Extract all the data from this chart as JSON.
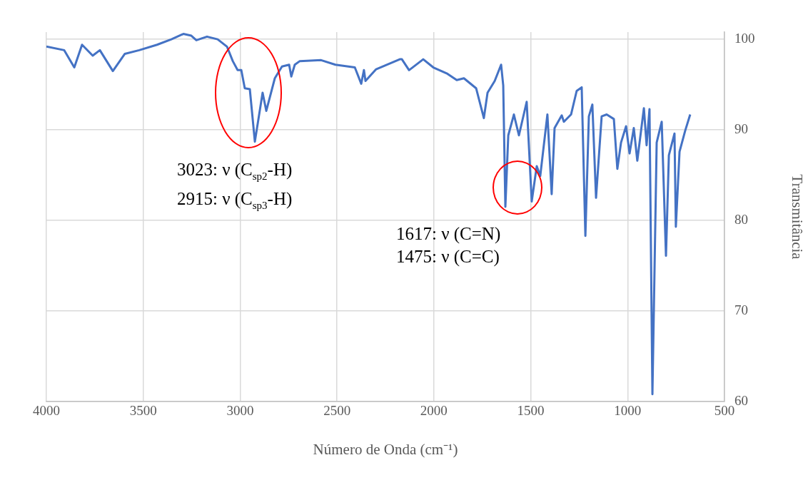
{
  "chart_data": {
    "type": "line",
    "xlabel": "Número de Onda (cm⁻¹)",
    "ylabel": "Transmitância",
    "color": "#4472c4",
    "grid": true,
    "xlim": [
      4000,
      500
    ],
    "xticks": [
      4000,
      3500,
      3000,
      2500,
      2000,
      1500,
      1000,
      500
    ],
    "ylim": [
      60,
      100.8
    ],
    "yticks": [
      60,
      70,
      80,
      90,
      100
    ],
    "x": [
      4000,
      3908,
      3856,
      3816,
      3761,
      3724,
      3657,
      3595,
      3521,
      3429,
      3355,
      3293,
      3252,
      3226,
      3171,
      3116,
      3068,
      3038,
      3013,
      2994,
      2976,
      2950,
      2924,
      2884,
      2865,
      2821,
      2784,
      2747,
      2736,
      2718,
      2692,
      2582,
      2508,
      2408,
      2375,
      2361,
      2353,
      2298,
      2176,
      2165,
      2128,
      2055,
      2003,
      1930,
      1882,
      1845,
      1782,
      1742,
      1723,
      1686,
      1653,
      1642,
      1631,
      1616,
      1587,
      1561,
      1521,
      1495,
      1469,
      1451,
      1414,
      1392,
      1377,
      1340,
      1329,
      1292,
      1263,
      1237,
      1218,
      1200,
      1182,
      1163,
      1134,
      1108,
      1071,
      1053,
      1034,
      1008,
      990,
      968,
      950,
      916,
      902,
      887,
      872,
      850,
      824,
      802,
      787,
      758,
      751,
      732,
      703,
      677
    ],
    "values": [
      99.2,
      98.8,
      96.9,
      99.4,
      98.2,
      98.8,
      96.5,
      98.4,
      98.8,
      99.4,
      100.0,
      100.6,
      100.4,
      99.9,
      100.3,
      100.0,
      99.2,
      97.6,
      96.6,
      96.6,
      94.6,
      94.5,
      88.7,
      94.1,
      92.1,
      95.7,
      97.0,
      97.2,
      95.9,
      97.2,
      97.6,
      97.7,
      97.2,
      96.9,
      95.1,
      96.6,
      95.4,
      96.7,
      97.8,
      97.8,
      96.6,
      97.8,
      96.9,
      96.2,
      95.5,
      95.7,
      94.6,
      91.3,
      94.1,
      95.4,
      97.2,
      94.9,
      81.5,
      89.4,
      91.7,
      89.4,
      93.1,
      82.1,
      86.0,
      84.9,
      91.7,
      82.9,
      90.2,
      91.6,
      90.9,
      91.7,
      94.3,
      94.7,
      78.3,
      91.5,
      92.8,
      82.5,
      91.5,
      91.7,
      91.2,
      85.7,
      88.6,
      90.4,
      87.4,
      90.2,
      86.6,
      92.4,
      88.3,
      92.3,
      60.8,
      88.6,
      90.9,
      76.1,
      87.2,
      89.6,
      79.3,
      87.6,
      89.9,
      91.7
    ],
    "annotations": [
      "3023: ν (C$_{sp2}$-H)\n2915: ν (C$_{sp3}$-H)",
      "1617: ν (C=N)\n1475: ν (C=C)"
    ]
  }
}
